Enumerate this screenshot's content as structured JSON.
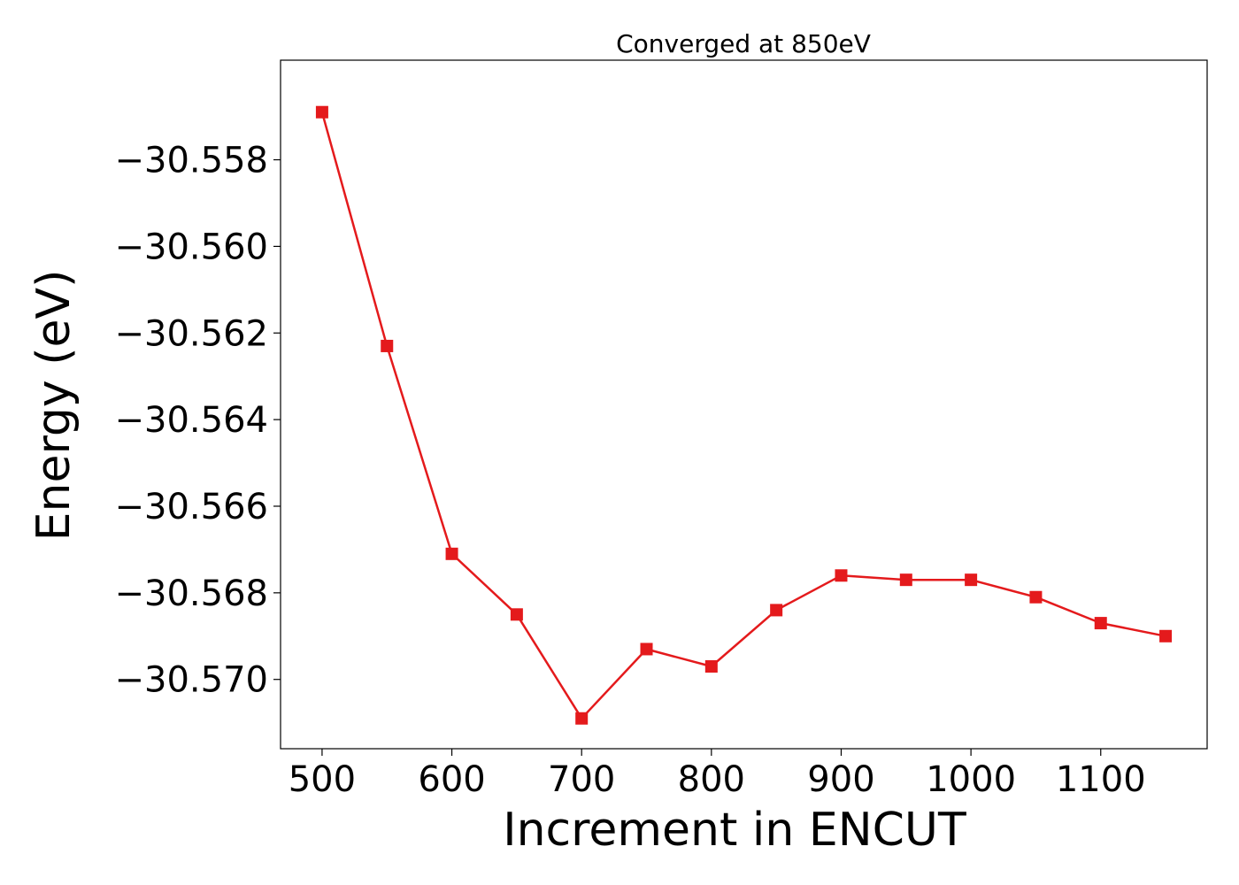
{
  "chart_data": {
    "type": "line",
    "title": "Converged at 850eV",
    "xlabel": "Increment in ENCUT",
    "ylabel": "Energy (eV)",
    "xlim": [
      468,
      1182
    ],
    "ylim": [
      -30.5716,
      -30.5557
    ],
    "xticks": [
      500,
      600,
      700,
      800,
      900,
      1000,
      1100
    ],
    "xtick_labels": [
      "500",
      "600",
      "700",
      "800",
      "900",
      "1000",
      "1100"
    ],
    "yticks": [
      -30.558,
      -30.56,
      -30.562,
      -30.564,
      -30.566,
      -30.568,
      -30.57
    ],
    "ytick_labels": [
      "−30.558",
      "−30.560",
      "−30.562",
      "−30.564",
      "−30.566",
      "−30.568",
      "−30.570"
    ],
    "grid": false,
    "series": [
      {
        "color": "#e41a1c",
        "marker": "square",
        "x": [
          500,
          550,
          600,
          650,
          700,
          750,
          800,
          850,
          900,
          950,
          1000,
          1050,
          1100,
          1150
        ],
        "y": [
          -30.5569,
          -30.5623,
          -30.5671,
          -30.5685,
          -30.5709,
          -30.5693,
          -30.5697,
          -30.5684,
          -30.5676,
          -30.5677,
          -30.5677,
          -30.5681,
          -30.5687,
          -30.569
        ]
      }
    ]
  }
}
